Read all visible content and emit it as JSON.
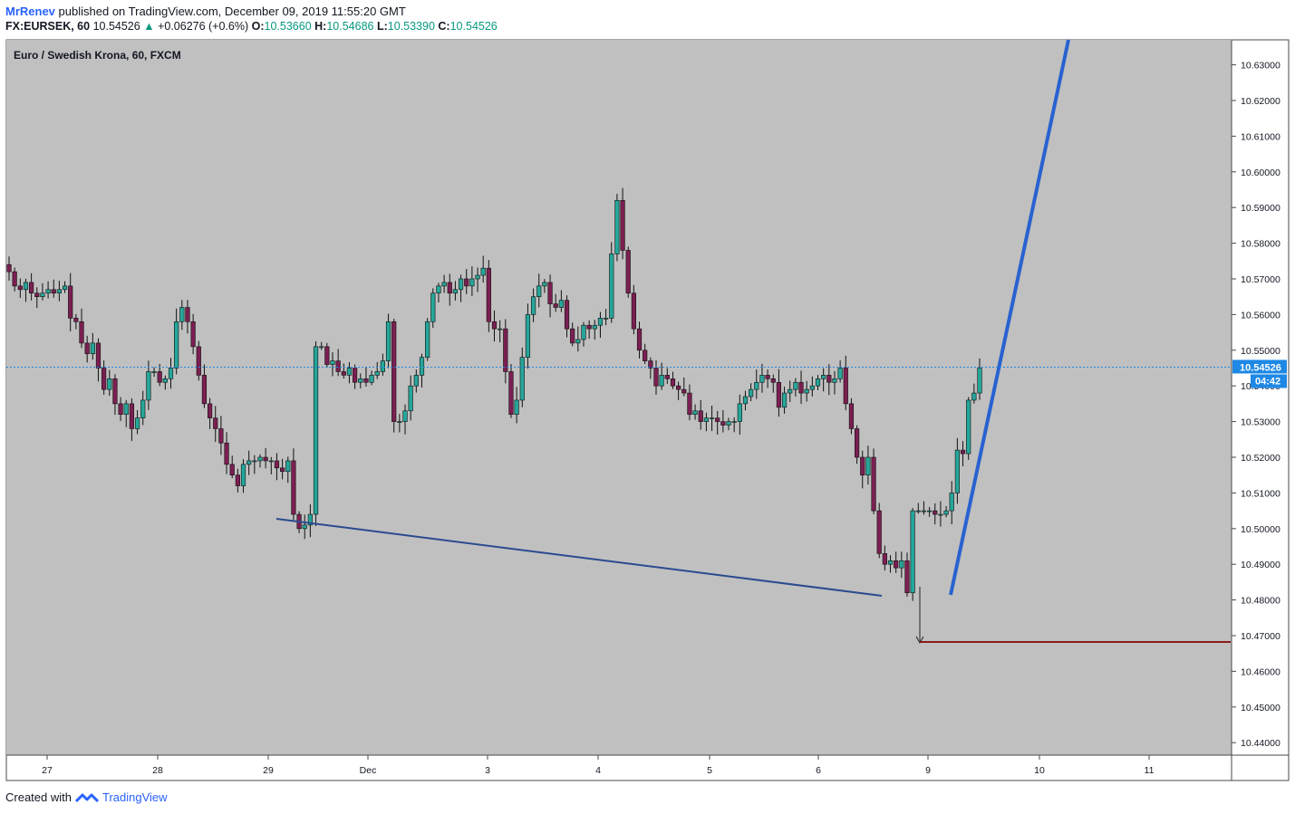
{
  "header": {
    "author": "MrRenev",
    "published_text": "published on TradingView.com, December 09, 2019 11:55:20 GMT",
    "symbol_line": "FX:EURSEK, 60",
    "last_price": "10.54526",
    "change": "+0.06276 (+0.6%)",
    "open_label": "O:",
    "open_value": "10.53660",
    "high_label": "H:",
    "high_value": "10.54686",
    "low_label": "L:",
    "low_value": "10.53390",
    "close_label": "C:",
    "close_value": "10.54526"
  },
  "footer": {
    "created_with": "Created with",
    "brand": "TradingView"
  },
  "colors": {
    "plot_bg": "#c0c0c0",
    "bull": "#26a69a",
    "bear": "#7b1f52",
    "wick": "#111111",
    "trend_line": "#2b4a8f",
    "blue_arrow": "#2962d0",
    "stop_loss": "#8b1a1a",
    "price_line": "#1e88e5",
    "price_label_bg": "#1e88e5"
  },
  "chart_data": {
    "type": "candlestick",
    "title": "Euro / Swedish Krona, 60, FXCM",
    "x_ticks": [
      "27",
      "28",
      "29",
      "Dec",
      "3",
      "4",
      "5",
      "6",
      "9",
      "10",
      "11"
    ],
    "y_ticks": [
      "10.63000",
      "10.62000",
      "10.61000",
      "10.60000",
      "10.59000",
      "10.58000",
      "10.57000",
      "10.56000",
      "10.55000",
      "10.54000",
      "10.53000",
      "10.52000",
      "10.51000",
      "10.50000",
      "10.49000",
      "10.48000",
      "10.47000",
      "10.46000",
      "10.45000",
      "10.44000"
    ],
    "ylim": [
      10.4365,
      10.637
    ],
    "grid": false,
    "last_price_label": "10.54526",
    "countdown_label": "04:42",
    "series_close": [
      10.572,
      10.568,
      10.567,
      10.569,
      10.566,
      10.565,
      10.566,
      10.567,
      10.566,
      10.567,
      10.568,
      10.559,
      10.558,
      10.552,
      10.549,
      10.552,
      10.545,
      10.539,
      10.542,
      10.535,
      10.532,
      10.535,
      10.528,
      10.531,
      10.536,
      10.544,
      10.544,
      10.541,
      10.542,
      10.545,
      10.558,
      10.562,
      10.558,
      10.551,
      10.543,
      10.535,
      10.531,
      10.528,
      10.524,
      10.518,
      10.515,
      10.512,
      10.518,
      10.519,
      10.519,
      10.52,
      10.519,
      10.519,
      10.517,
      10.516,
      10.519,
      10.504,
      10.5,
      10.501,
      10.504,
      10.551,
      10.551,
      10.546,
      10.547,
      10.544,
      10.543,
      10.545,
      10.541,
      10.542,
      10.541,
      10.543,
      10.544,
      10.547,
      10.558,
      10.53,
      10.53,
      10.533,
      10.54,
      10.543,
      10.548,
      10.558,
      10.566,
      10.568,
      10.569,
      10.566,
      10.567,
      10.57,
      10.568,
      10.57,
      10.571,
      10.573,
      10.558,
      10.556,
      10.556,
      10.544,
      10.532,
      10.536,
      10.548,
      10.56,
      10.565,
      10.568,
      10.569,
      10.563,
      10.562,
      10.564,
      10.556,
      10.552,
      10.553,
      10.557,
      10.556,
      10.557,
      10.559,
      10.559,
      10.577,
      10.592,
      10.578,
      10.566,
      10.556,
      10.55,
      10.547,
      10.545,
      10.54,
      10.543,
      10.542,
      10.54,
      10.539,
      10.538,
      10.532,
      10.533,
      10.53,
      10.531,
      10.531,
      10.53,
      10.529,
      10.53,
      10.53,
      10.535,
      10.537,
      10.539,
      10.541,
      10.543,
      10.542,
      10.541,
      10.534,
      10.538,
      10.539,
      10.541,
      10.538,
      10.539,
      10.54,
      10.542,
      10.543,
      10.541,
      10.542,
      10.545,
      10.535,
      10.528,
      10.52,
      10.515,
      10.52,
      10.505,
      10.493,
      10.49,
      10.491,
      10.489,
      10.491,
      10.482,
      10.505,
      10.505,
      10.505,
      10.505,
      10.504,
      10.504,
      10.505,
      10.51,
      10.522,
      10.521,
      10.536,
      10.538,
      10.545
    ]
  }
}
